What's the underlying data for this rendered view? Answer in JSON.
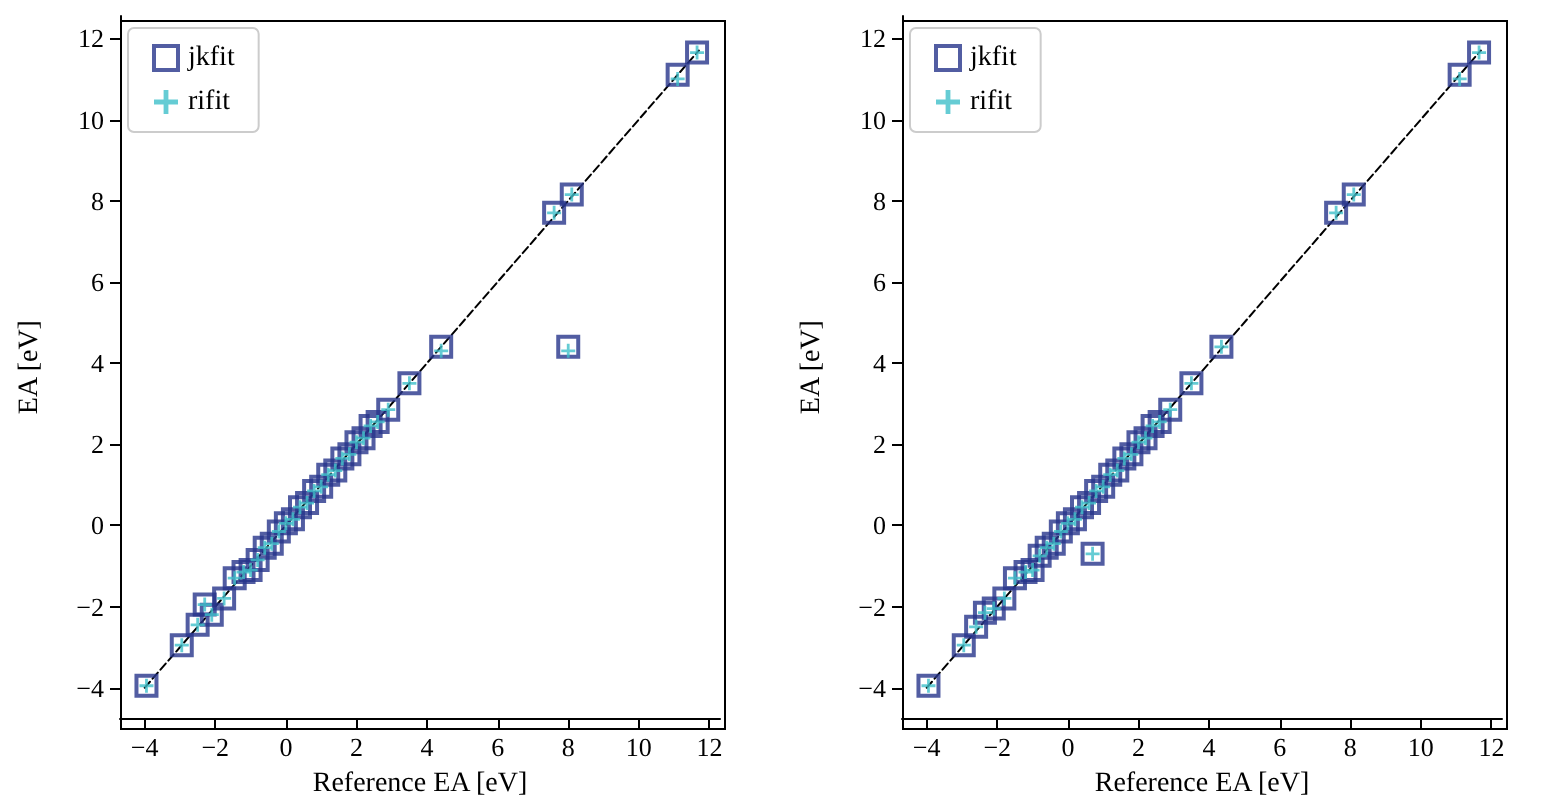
{
  "chart_data": [
    {
      "type": "scatter",
      "xlabel": "Reference EA [eV]",
      "ylabel": "EA [eV]",
      "xlim": [
        -4.7,
        12.3
      ],
      "ylim": [
        -4.75,
        12.55
      ],
      "xticks": [
        -4,
        -2,
        0,
        2,
        4,
        6,
        8,
        10,
        12
      ],
      "yticks": [
        -4,
        -2,
        0,
        2,
        4,
        6,
        8,
        10,
        12
      ],
      "grid": false,
      "legend": "top left",
      "series": [
        {
          "name": "jkfit",
          "color": "#27348b",
          "marker": "square",
          "x": [
            -3.95,
            -2.95,
            -2.5,
            -2.3,
            -2.1,
            -1.75,
            -1.45,
            -1.2,
            -1.0,
            -0.8,
            -0.6,
            -0.4,
            -0.2,
            0,
            0.2,
            0.4,
            0.6,
            0.8,
            1.0,
            1.2,
            1.4,
            1.6,
            1.8,
            2.0,
            2.2,
            2.4,
            2.6,
            2.9,
            3.5,
            4.4,
            7.6,
            8.1,
            8.0,
            11.1,
            11.65
          ],
          "values": [
            -3.95,
            -2.95,
            -2.45,
            -1.95,
            -2.2,
            -1.8,
            -1.3,
            -1.15,
            -1.1,
            -0.85,
            -0.55,
            -0.45,
            -0.15,
            0.05,
            0.15,
            0.45,
            0.55,
            0.85,
            0.95,
            1.25,
            1.35,
            1.65,
            1.75,
            2.05,
            2.15,
            2.45,
            2.55,
            2.85,
            3.5,
            4.4,
            7.7,
            8.15,
            4.4,
            11.1,
            11.65
          ]
        },
        {
          "name": "rifit",
          "color": "#3fbfc9",
          "marker": "cross",
          "x": [
            -3.95,
            -2.95,
            -2.5,
            -2.3,
            -2.1,
            -1.75,
            -1.45,
            -1.2,
            -1.0,
            -0.8,
            -0.6,
            -0.4,
            -0.2,
            0,
            0.2,
            0.4,
            0.6,
            0.8,
            1.0,
            1.2,
            1.4,
            1.6,
            1.8,
            2.0,
            2.2,
            2.4,
            2.6,
            2.9,
            3.5,
            4.4,
            7.6,
            8.1,
            8.0,
            11.1,
            11.65
          ],
          "values": [
            -3.95,
            -2.95,
            -2.45,
            -1.95,
            -2.2,
            -1.8,
            -1.3,
            -1.15,
            -1.1,
            -0.85,
            -0.55,
            -0.45,
            -0.15,
            0.05,
            0.15,
            0.45,
            0.55,
            0.85,
            0.95,
            1.25,
            1.35,
            1.65,
            1.75,
            2.05,
            2.15,
            2.45,
            2.55,
            2.85,
            3.5,
            4.3,
            7.7,
            8.15,
            4.3,
            11.0,
            11.65
          ]
        },
        {
          "type": "line",
          "color": "#000000",
          "marker": "none",
          "line_style": "dashed",
          "x": [
            -4,
            11.7
          ],
          "values": [
            -4,
            11.7
          ]
        }
      ]
    },
    {
      "type": "scatter",
      "xlabel": "Reference EA [eV]",
      "ylabel": "EA [eV]",
      "xlim": [
        -4.7,
        12.3
      ],
      "ylim": [
        -4.75,
        12.55
      ],
      "xticks": [
        -4,
        -2,
        0,
        2,
        4,
        6,
        8,
        10,
        12
      ],
      "yticks": [
        -4,
        -2,
        0,
        2,
        4,
        6,
        8,
        10,
        12
      ],
      "grid": false,
      "legend": "top left",
      "series": [
        {
          "name": "jkfit",
          "color": "#27348b",
          "marker": "square",
          "x": [
            -3.95,
            -2.95,
            -2.6,
            -2.35,
            -2.1,
            -1.8,
            -1.5,
            -1.2,
            -1.0,
            -0.8,
            -0.6,
            -0.4,
            -0.2,
            0,
            0.2,
            0.4,
            0.6,
            0.8,
            1.0,
            1.2,
            1.4,
            1.6,
            1.8,
            2.0,
            2.2,
            2.4,
            2.6,
            2.9,
            3.5,
            4.35,
            7.6,
            8.1,
            0.7,
            11.1,
            11.65
          ],
          "values": [
            -3.95,
            -2.95,
            -2.5,
            -2.15,
            -2.05,
            -1.8,
            -1.3,
            -1.15,
            -1.1,
            -0.75,
            -0.55,
            -0.45,
            -0.15,
            0.05,
            0.15,
            0.45,
            0.55,
            0.85,
            0.95,
            1.25,
            1.35,
            1.65,
            1.75,
            2.05,
            2.15,
            2.45,
            2.55,
            2.85,
            3.5,
            4.4,
            7.7,
            8.15,
            -0.7,
            11.1,
            11.65
          ]
        },
        {
          "name": "rifit",
          "color": "#3fbfc9",
          "marker": "cross",
          "x": [
            -3.95,
            -2.95,
            -2.6,
            -2.35,
            -2.1,
            -1.8,
            -1.5,
            -1.2,
            -1.0,
            -0.8,
            -0.6,
            -0.4,
            -0.2,
            0,
            0.2,
            0.4,
            0.6,
            0.8,
            1.0,
            1.2,
            1.4,
            1.6,
            1.8,
            2.0,
            2.2,
            2.4,
            2.6,
            2.9,
            3.5,
            4.35,
            7.6,
            8.1,
            0.7,
            11.1,
            11.65
          ],
          "values": [
            -3.95,
            -2.95,
            -2.5,
            -2.15,
            -2.05,
            -1.8,
            -1.3,
            -1.15,
            -1.1,
            -0.75,
            -0.55,
            -0.45,
            -0.15,
            0.05,
            0.15,
            0.45,
            0.55,
            0.85,
            0.95,
            1.25,
            1.35,
            1.65,
            1.75,
            2.05,
            2.15,
            2.45,
            2.55,
            2.85,
            3.5,
            4.4,
            7.7,
            8.15,
            -0.7,
            11.0,
            11.65
          ]
        },
        {
          "type": "line",
          "color": "#000000",
          "marker": "none",
          "line_style": "dashed",
          "x": [
            -4,
            11.7
          ],
          "values": [
            -4,
            11.7
          ]
        }
      ]
    }
  ]
}
